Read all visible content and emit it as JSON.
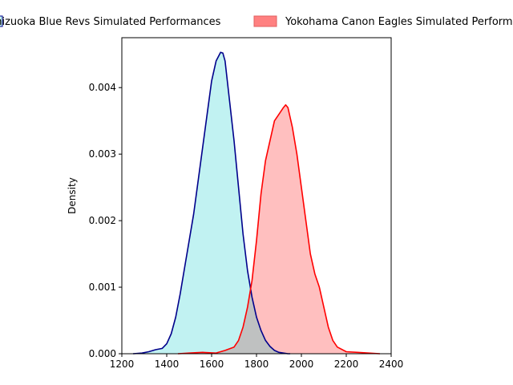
{
  "chart_data": {
    "type": "area",
    "title": "",
    "xlabel": "",
    "ylabel": "Density",
    "xlim": [
      1200,
      2400
    ],
    "ylim": [
      0,
      0.00475
    ],
    "x_ticks": [
      1200,
      1400,
      1600,
      1800,
      2000,
      2200,
      2400
    ],
    "x_tick_labels": [
      "1200",
      "1400",
      "1600",
      "1800",
      "2000",
      "2200",
      "2400"
    ],
    "y_ticks": [
      0,
      0.001,
      0.002,
      0.003,
      0.004
    ],
    "y_tick_labels": [
      "0.000",
      "0.001",
      "0.002",
      "0.003",
      "0.004"
    ],
    "grid": false,
    "legend_position": "top",
    "overlap_color": "#bfc1c1",
    "series": [
      {
        "name": "Shizuoka Blue Revs Simulated Performances",
        "line_color": "#00008b",
        "fill_color": "#c1f2f2",
        "x": [
          1250,
          1290,
          1320,
          1350,
          1380,
          1400,
          1420,
          1440,
          1460,
          1480,
          1500,
          1520,
          1540,
          1560,
          1580,
          1600,
          1620,
          1640,
          1650,
          1660,
          1680,
          1700,
          1720,
          1740,
          1760,
          1780,
          1800,
          1820,
          1840,
          1860,
          1880,
          1900,
          1920,
          1940,
          1950
        ],
        "y": [
          0,
          1e-05,
          3e-05,
          6e-05,
          8e-05,
          0.00015,
          0.0003,
          0.00055,
          0.0009,
          0.0013,
          0.0017,
          0.0021,
          0.0026,
          0.0031,
          0.0036,
          0.0041,
          0.0044,
          0.00453,
          0.00452,
          0.0044,
          0.0038,
          0.0032,
          0.0025,
          0.0018,
          0.00125,
          0.00085,
          0.00055,
          0.00035,
          0.0002,
          0.00011,
          5e-05,
          2e-05,
          1e-05,
          0,
          0
        ]
      },
      {
        "name": "Yokohama Canon Eagles Simulated Performances",
        "line_color": "#ff0000",
        "fill_color": "#ffbfbf",
        "x": [
          1450,
          1500,
          1560,
          1620,
          1660,
          1700,
          1720,
          1740,
          1760,
          1780,
          1800,
          1820,
          1840,
          1860,
          1880,
          1900,
          1920,
          1930,
          1940,
          1960,
          1980,
          2000,
          2020,
          2040,
          2060,
          2080,
          2100,
          2120,
          2140,
          2160,
          2200,
          2250,
          2300,
          2350
        ],
        "y": [
          0,
          1e-05,
          2e-05,
          1e-05,
          5e-05,
          0.0001,
          0.0002,
          0.0004,
          0.0007,
          0.0011,
          0.0017,
          0.0024,
          0.0029,
          0.0032,
          0.0035,
          0.0036,
          0.0037,
          0.00374,
          0.0037,
          0.0034,
          0.003,
          0.0025,
          0.002,
          0.0015,
          0.0012,
          0.001,
          0.0007,
          0.0004,
          0.0002,
          0.0001,
          3e-05,
          2e-05,
          1e-05,
          0
        ]
      }
    ]
  }
}
